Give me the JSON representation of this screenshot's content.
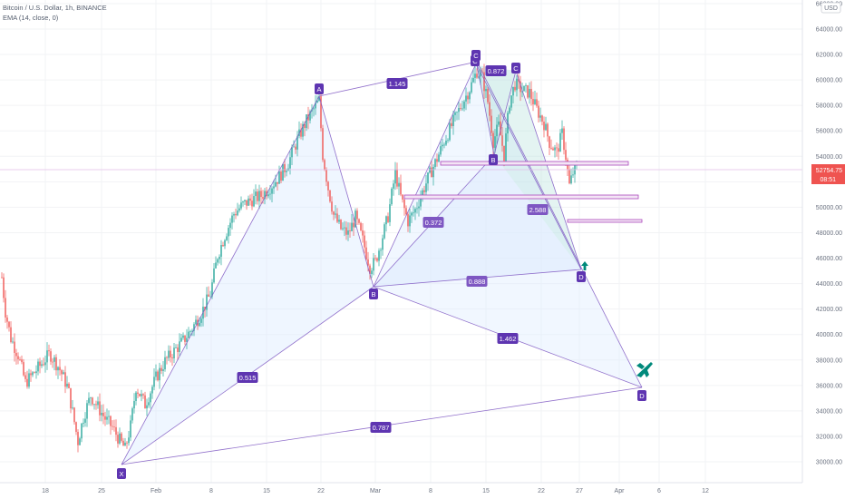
{
  "header": {
    "title": "Bitcoin / U.S. Dollar, 1h, BINANCE",
    "indicator": "EMA (14, close, 0)"
  },
  "price_axis": {
    "currency": "USD",
    "ticks": [
      "66000.00",
      "64000.00",
      "62000.00",
      "60000.00",
      "58000.00",
      "56000.00",
      "54000.00",
      "52000.00",
      "50000.00",
      "48000.00",
      "46000.00",
      "44000.00",
      "42000.00",
      "40000.00",
      "38000.00",
      "36000.00",
      "34000.00",
      "32000.00",
      "30000.00"
    ],
    "last_price": "52754.75",
    "countdown": "08:51",
    "last_price_color": "#ef5350"
  },
  "time_axis": {
    "ticks": [
      "18",
      "25",
      "Feb",
      "8",
      "15",
      "22",
      "Mar",
      "8",
      "15",
      "22",
      "27",
      "Apr",
      "6",
      "12"
    ]
  },
  "drawings": {
    "points_big": [
      "X",
      "A",
      "B",
      "C",
      "D"
    ],
    "points_small": [
      "C",
      "B",
      "C",
      "D"
    ],
    "ratios": [
      "1.145",
      "0.515",
      "0.888",
      "1.462",
      "0.787",
      "0.872",
      "0.372",
      "2.588"
    ],
    "pattern_color": "#7e57c2",
    "fill_color": "#dbeafe",
    "teal_fill_color": "#b2dfdb",
    "icons": [
      "up-arrow-icon",
      "airplane-icon"
    ]
  },
  "chart_data": {
    "type": "candlestick",
    "symbol": "BTCUSD",
    "timeframe": "1h",
    "exchange": "BINANCE",
    "ylim": [
      29000,
      66500
    ],
    "y_ticks": [
      30000,
      32000,
      34000,
      36000,
      38000,
      40000,
      42000,
      44000,
      46000,
      48000,
      50000,
      52000,
      54000,
      56000,
      58000,
      60000,
      62000,
      64000,
      66000
    ],
    "last_price": 52754.75,
    "harmonic_pattern_big": {
      "X": {
        "date": "Jan 28",
        "price": 29800
      },
      "A": {
        "date": "Feb 21",
        "price": 58300
      },
      "B": {
        "date": "Mar 1",
        "price": 43400
      },
      "C": {
        "date": "Mar 13",
        "price": 60900
      },
      "D": {
        "date": "Apr 4",
        "price": 35800
      }
    },
    "harmonic_pattern_small": {
      "C1": {
        "date": "Mar 13",
        "price": 60700
      },
      "B": {
        "date": "Mar 15",
        "price": 53700
      },
      "C2": {
        "date": "Mar 18",
        "price": 60200
      },
      "D": {
        "date": "Mar 25",
        "price": 45200
      }
    },
    "zones": [
      {
        "price_top": 53500,
        "price_bottom": 53300,
        "from": "Mar 6",
        "to": "Mar 28"
      },
      {
        "price_top": 50700,
        "price_bottom": 50400,
        "from": "Mar 3",
        "to": "Mar 28"
      },
      {
        "price_top": 48700,
        "price_bottom": 48500,
        "from": "Mar 24",
        "to": "Mar 28"
      }
    ],
    "series_path": [
      [
        2,
        44500
      ],
      [
        6,
        41800
      ],
      [
        12,
        39700
      ],
      [
        20,
        38400
      ],
      [
        28,
        36200
      ],
      [
        40,
        37200
      ],
      [
        55,
        38500
      ],
      [
        65,
        37400
      ],
      [
        75,
        35800
      ],
      [
        86,
        31600
      ],
      [
        92,
        33500
      ],
      [
        100,
        35200
      ],
      [
        108,
        34300
      ],
      [
        116,
        33400
      ],
      [
        124,
        32700
      ],
      [
        131,
        31800
      ],
      [
        138,
        31000
      ],
      [
        144,
        32800
      ],
      [
        150,
        35900
      ],
      [
        160,
        34500
      ],
      [
        172,
        36600
      ],
      [
        182,
        37900
      ],
      [
        192,
        38700
      ],
      [
        202,
        39500
      ],
      [
        212,
        40500
      ],
      [
        222,
        41700
      ],
      [
        232,
        43200
      ],
      [
        240,
        46200
      ],
      [
        248,
        47800
      ],
      [
        258,
        49500
      ],
      [
        268,
        50200
      ],
      [
        278,
        50600
      ],
      [
        288,
        50900
      ],
      [
        298,
        51600
      ],
      [
        308,
        52400
      ],
      [
        318,
        53500
      ],
      [
        328,
        55300
      ],
      [
        338,
        56800
      ],
      [
        346,
        57700
      ],
      [
        352,
        58400
      ],
      [
        356,
        54100
      ],
      [
        362,
        51500
      ],
      [
        368,
        49400
      ],
      [
        376,
        48300
      ],
      [
        384,
        47900
      ],
      [
        392,
        49200
      ],
      [
        400,
        47400
      ],
      [
        408,
        45300
      ],
      [
        414,
        45700
      ],
      [
        420,
        47200
      ],
      [
        428,
        49300
      ],
      [
        436,
        52700
      ],
      [
        442,
        50800
      ],
      [
        450,
        48900
      ],
      [
        458,
        49800
      ],
      [
        466,
        51200
      ],
      [
        474,
        52600
      ],
      [
        482,
        53800
      ],
      [
        490,
        55200
      ],
      [
        500,
        56700
      ],
      [
        510,
        58200
      ],
      [
        518,
        59300
      ],
      [
        526,
        60700
      ],
      [
        532,
        60200
      ],
      [
        538,
        58300
      ],
      [
        544,
        55200
      ],
      [
        550,
        56400
      ],
      [
        556,
        54100
      ],
      [
        562,
        58300
      ],
      [
        568,
        59700
      ],
      [
        576,
        59200
      ],
      [
        584,
        59000
      ],
      [
        592,
        57700
      ],
      [
        600,
        56600
      ],
      [
        606,
        55100
      ],
      [
        614,
        54300
      ],
      [
        620,
        55800
      ],
      [
        624,
        54000
      ],
      [
        628,
        51700
      ],
      [
        632,
        52700
      ],
      [
        636,
        53100
      ]
    ]
  }
}
